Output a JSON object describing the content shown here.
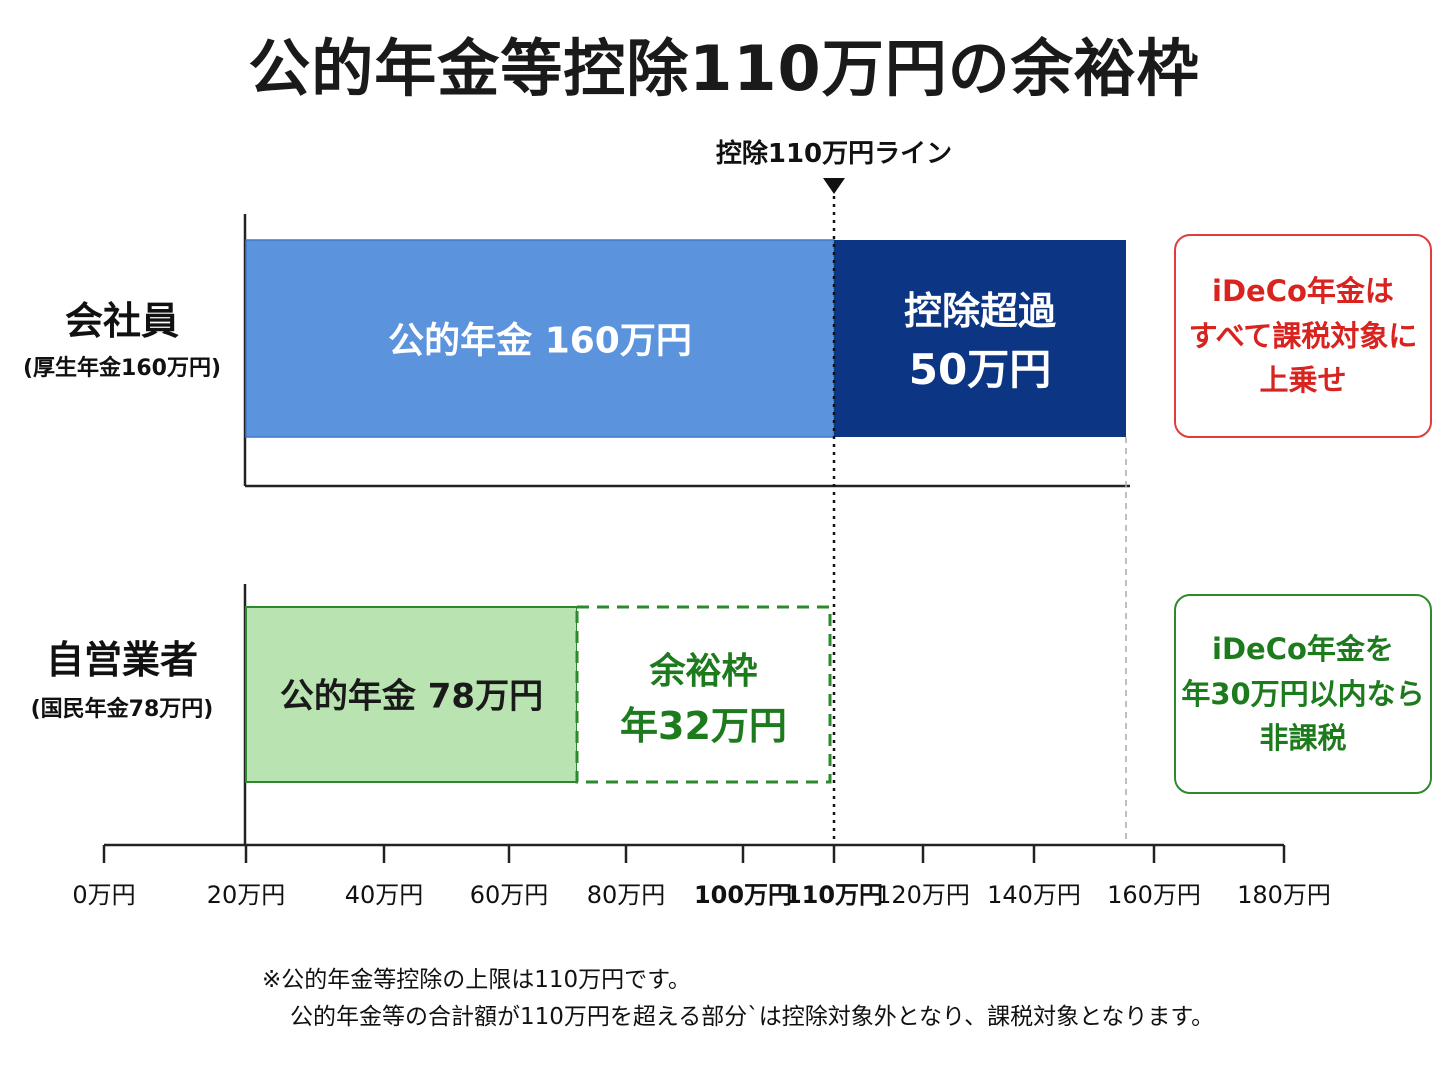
{
  "title": "公的年金等控除110万円の余裕枠",
  "chart_data": {
    "type": "bar",
    "orientation": "horizontal",
    "stacked": true,
    "xlim": [
      0,
      180
    ],
    "x_ticks": [
      {
        "value": 0,
        "label": "0万円"
      },
      {
        "value": 20,
        "label": "20万円"
      },
      {
        "value": 40,
        "label": "40万円"
      },
      {
        "value": 60,
        "label": "60万円"
      },
      {
        "value": 80,
        "label": "80万円"
      },
      {
        "value": 100,
        "label": "100万円"
      },
      {
        "value": 110,
        "label": "110万円"
      },
      {
        "value": 120,
        "label": "120万円"
      },
      {
        "value": 140,
        "label": "140万円"
      },
      {
        "value": 160,
        "label": "160万円"
      },
      {
        "value": 180,
        "label": "180万円"
      }
    ],
    "reference_line": {
      "value": 110,
      "label": "控除110万円ライン"
    },
    "rows": [
      {
        "label": "会社員",
        "sublabel": "(厚生年金160万円)",
        "segments": [
          {
            "name": "公的年金",
            "value": 160,
            "label": "公的年金 160万円",
            "color": "#5b94dd",
            "style": "solid"
          },
          {
            "name": "控除超過",
            "value": 50,
            "label_lines": [
              "控除超過",
              "50万円"
            ],
            "color": "#0c3584",
            "style": "solid"
          }
        ]
      },
      {
        "label": "自営業者",
        "sublabel": "(国民年金78万円)",
        "segments": [
          {
            "name": "公的年金",
            "value": 78,
            "label": "公的年金 78万円",
            "color": "#b9e3b1",
            "style": "solid"
          },
          {
            "name": "余裕枠",
            "value": 32,
            "label_lines": [
              "余裕枠",
              "年32万円"
            ],
            "color": "#2c8a2c",
            "style": "dashed"
          }
        ]
      }
    ]
  },
  "callouts": {
    "employee": {
      "lines": [
        "iDeCo年金は",
        "すべて課税対象に",
        "上乗せ"
      ],
      "color": "#d8231f"
    },
    "self_employed": {
      "lines": [
        "iDeCo年金を",
        "年30万円以内なら",
        "非課税"
      ],
      "color": "#1d7a1d"
    }
  },
  "footnote": {
    "line1": "※公的年金等控除の上限は110万円です。",
    "line2": "公的年金等の合計額が110万円を超える部分`は控除対象外となり、課税対象となります。"
  },
  "colors": {
    "axis": "#222222",
    "ref_line": "#111111",
    "bar_label_light": "#ffffff",
    "bar_label_dark": "#1a1a1a",
    "slack_label": "#1d7a1d"
  }
}
